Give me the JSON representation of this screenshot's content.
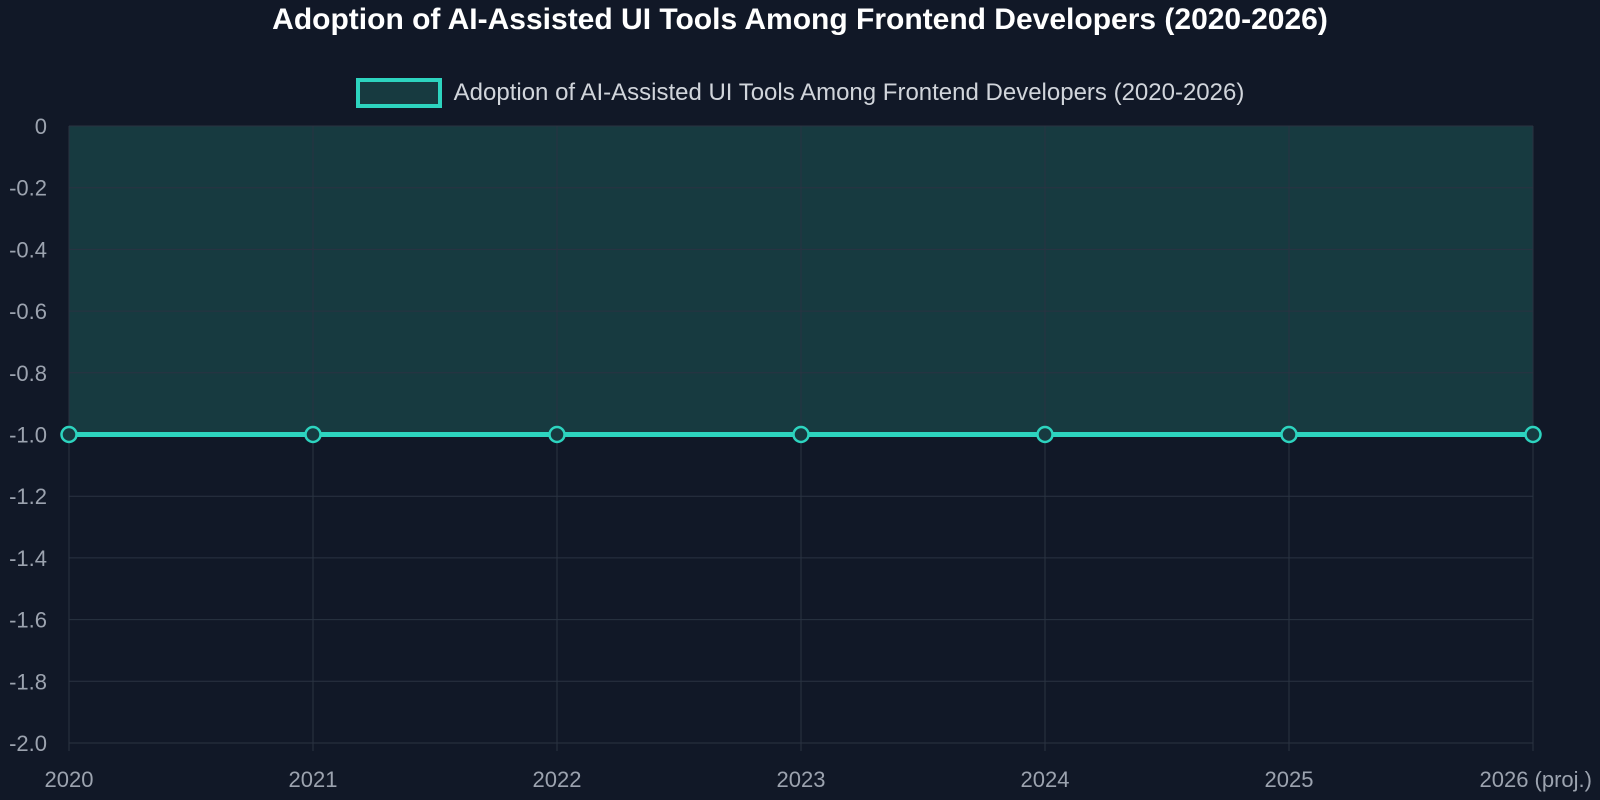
{
  "chart_data": {
    "type": "line",
    "title": "Adoption of AI-Assisted UI Tools Among Frontend Developers (2020-2026)",
    "xlabel": "",
    "ylabel": "",
    "categories": [
      "2020",
      "2021",
      "2022",
      "2023",
      "2024",
      "2025",
      "2026 (proj.)"
    ],
    "series": [
      {
        "name": "Adoption of AI-Assisted UI Tools Among Frontend Developers (2020-2026)",
        "values": [
          -1.0,
          -1.0,
          -1.0,
          -1.0,
          -1.0,
          -1.0,
          -1.0
        ]
      }
    ],
    "ylim": [
      -2.0,
      0
    ],
    "yticks": [
      "0",
      "-0.2",
      "-0.4",
      "-0.6",
      "-0.8",
      "-1.0",
      "-1.2",
      "-1.4",
      "-1.6",
      "-1.8",
      "-2.0"
    ],
    "fill": "to-top",
    "grid": true,
    "legend_position": "top-center"
  },
  "colors": {
    "background": "#111827",
    "line": "#2dd4bf",
    "fill": "#173a40",
    "grid": "#2a3342",
    "tick_text": "#9ca3af"
  }
}
